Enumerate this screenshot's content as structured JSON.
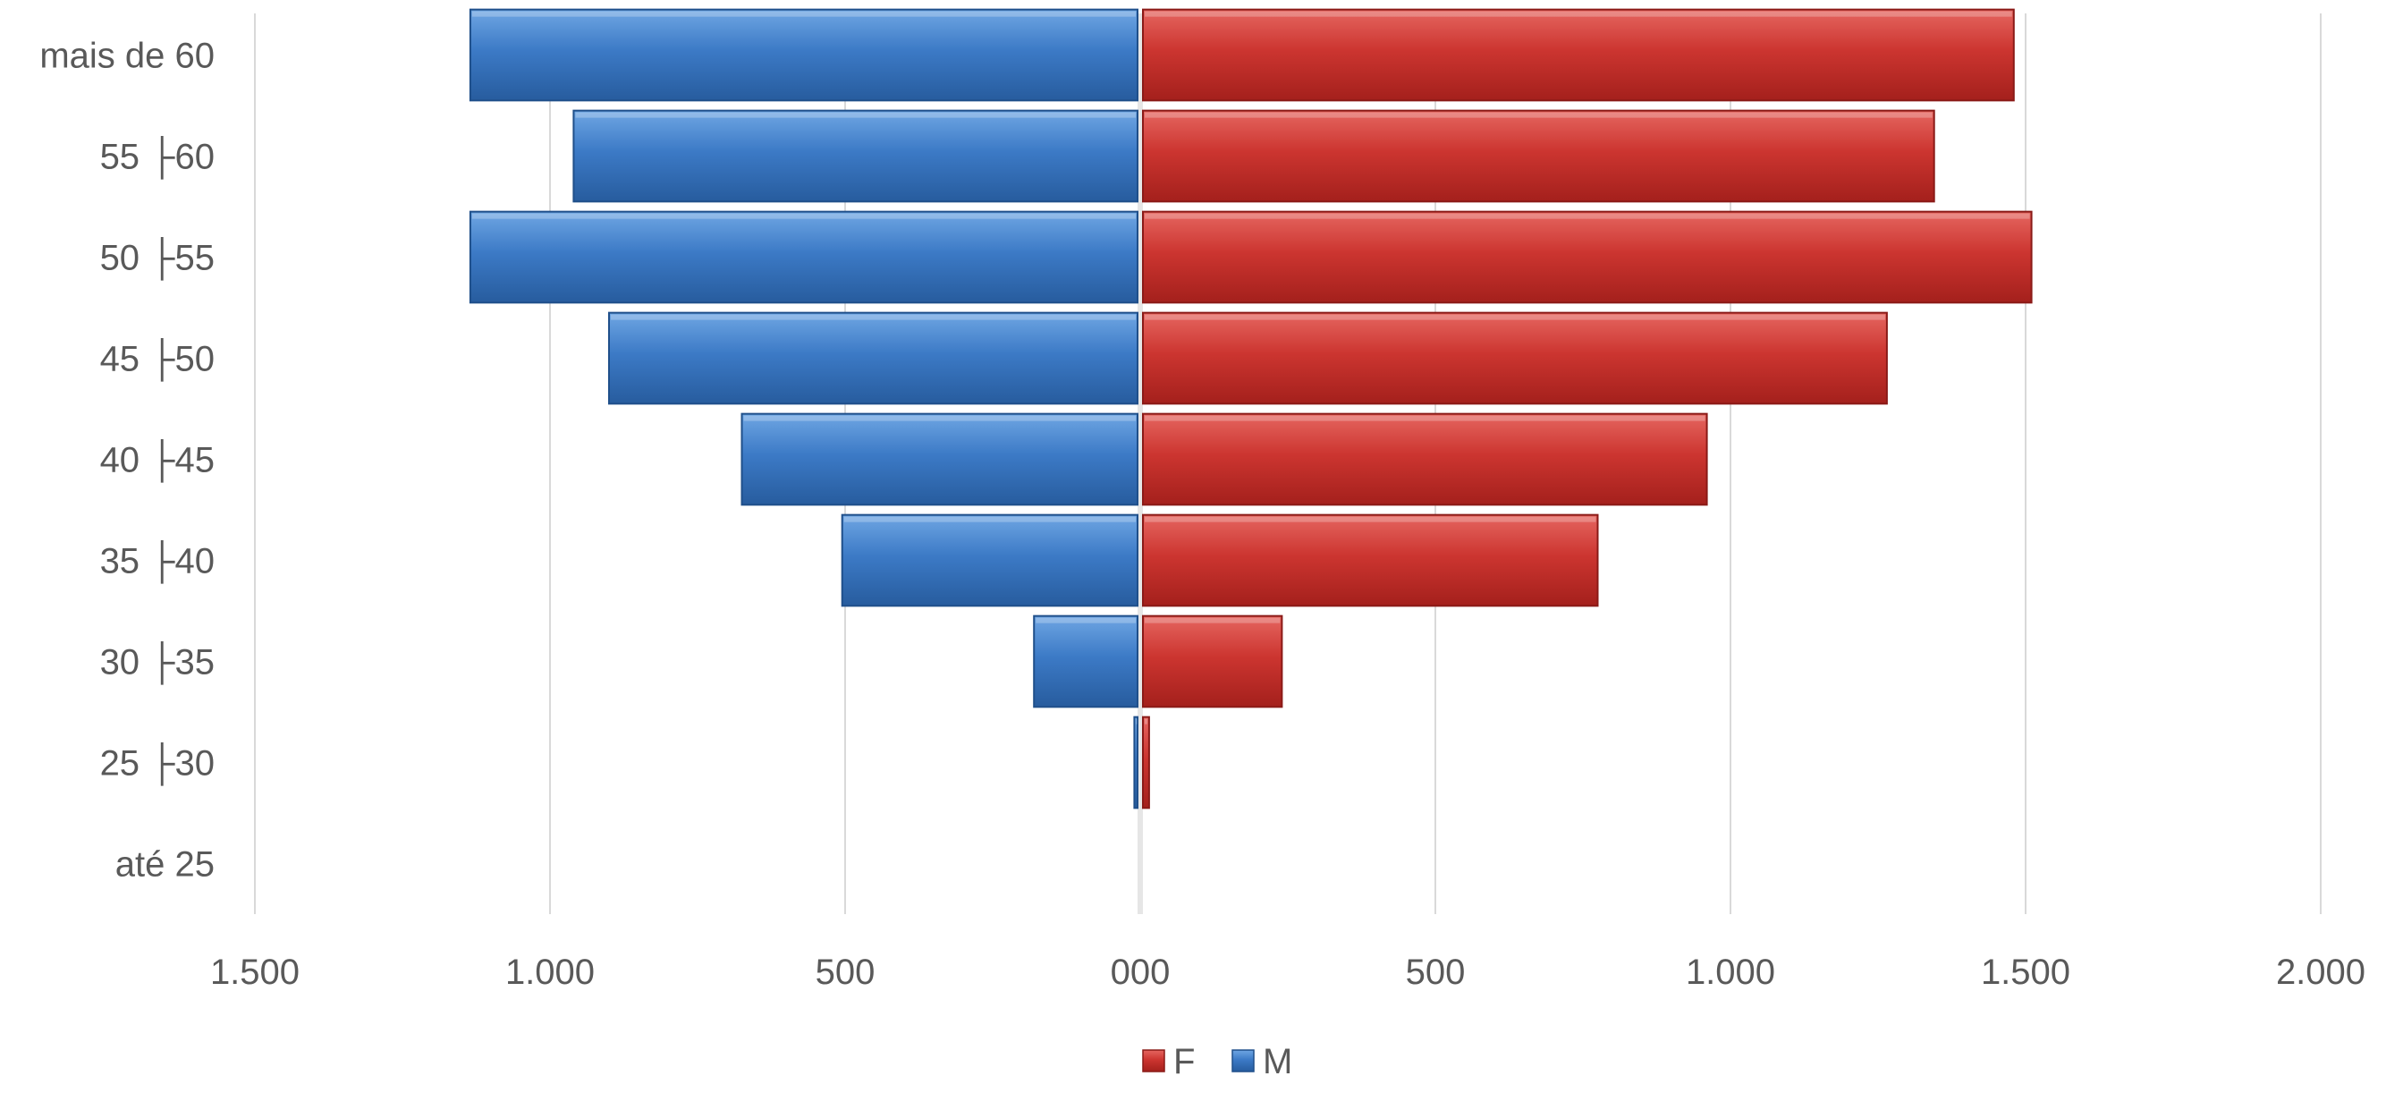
{
  "chart_data": {
    "type": "bar",
    "orientation": "horizontal",
    "layout": "population-pyramid",
    "categories": [
      "mais de 60",
      "55 ├60",
      "50 ├55",
      "45 ├50",
      "40 ├45",
      "35 ├40",
      "30 ├35",
      "25 ├30",
      "até 25"
    ],
    "series": [
      {
        "name": "F",
        "side": "right",
        "color": "#c9302c",
        "values": [
          1480,
          1345,
          1510,
          1265,
          960,
          775,
          240,
          15,
          0
        ]
      },
      {
        "name": "M",
        "side": "left",
        "color": "#3a78c3",
        "values": [
          1135,
          960,
          1135,
          900,
          675,
          505,
          180,
          10,
          0
        ]
      }
    ],
    "x_ticks": [
      {
        "value": -1500,
        "label": "1.500"
      },
      {
        "value": -1000,
        "label": "1.000"
      },
      {
        "value": -500,
        "label": "500"
      },
      {
        "value": 0,
        "label": "000"
      },
      {
        "value": 500,
        "label": "500"
      },
      {
        "value": 1000,
        "label": "1.000"
      },
      {
        "value": 1500,
        "label": "1.500"
      },
      {
        "value": 2000,
        "label": "2.000"
      }
    ],
    "xlim": [
      -1500,
      2000
    ],
    "grid": true,
    "legend_position": "bottom",
    "title": "",
    "xlabel": "",
    "ylabel": ""
  }
}
